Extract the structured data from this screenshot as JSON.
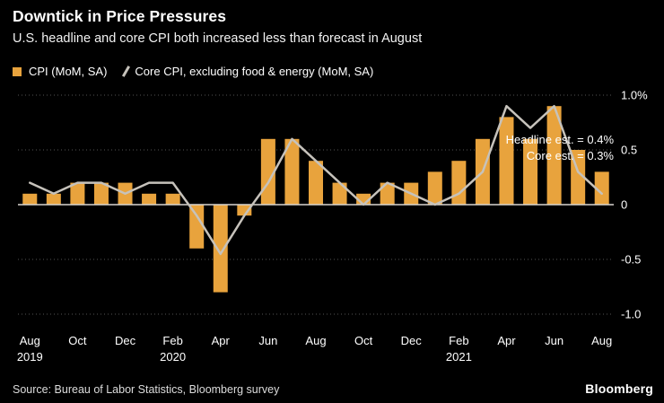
{
  "header": {
    "title": "Downtick in Price Pressures",
    "subtitle": "U.S. headline and core CPI both increased less than forecast in August"
  },
  "legend": {
    "bar_label": "CPI (MoM, SA)",
    "line_label": "Core CPI, excluding food & energy (MoM, SA)"
  },
  "footer": {
    "source": "Source: Bureau of Labor Statistics, Bloomberg survey",
    "logo": "Bloomberg"
  },
  "colors": {
    "background": "#000000",
    "bar": "#E8A33D",
    "line": "#C6C2BB",
    "grid": "#555555",
    "zero_line": "#D9D6D0",
    "text": "#ffffff"
  },
  "chart_data": {
    "type": "bar+line",
    "title": "Downtick in Price Pressures",
    "subtitle": "U.S. headline and core CPI both increased less than forecast in August",
    "categories": [
      "Aug 2019",
      "Sep 2019",
      "Oct 2019",
      "Nov 2019",
      "Dec 2019",
      "Jan 2020",
      "Feb 2020",
      "Mar 2020",
      "Apr 2020",
      "May 2020",
      "Jun 2020",
      "Jul 2020",
      "Aug 2020",
      "Sep 2020",
      "Oct 2020",
      "Nov 2020",
      "Dec 2020",
      "Jan 2021",
      "Feb 2021",
      "Mar 2021",
      "Apr 2021",
      "May 2021",
      "Jun 2021",
      "Jul 2021",
      "Aug 2021"
    ],
    "series": [
      {
        "name": "CPI (MoM, SA)",
        "type": "bar",
        "color": "#E8A33D",
        "values": [
          0.1,
          0.1,
          0.2,
          0.2,
          0.2,
          0.1,
          0.1,
          -0.4,
          -0.8,
          -0.1,
          0.6,
          0.6,
          0.4,
          0.2,
          0.1,
          0.2,
          0.2,
          0.3,
          0.4,
          0.6,
          0.8,
          0.6,
          0.9,
          0.5,
          0.3
        ]
      },
      {
        "name": "Core CPI, excluding food & energy (MoM, SA)",
        "type": "line",
        "color": "#C6C2BB",
        "values": [
          0.2,
          0.1,
          0.2,
          0.2,
          0.1,
          0.2,
          0.2,
          -0.1,
          -0.45,
          -0.1,
          0.2,
          0.6,
          0.4,
          0.2,
          0.0,
          0.2,
          0.1,
          0.0,
          0.1,
          0.3,
          0.9,
          0.7,
          0.9,
          0.3,
          0.1
        ]
      }
    ],
    "ylim": [
      -1.0,
      1.0
    ],
    "xlabel": "",
    "ylabel": "",
    "y_axis_side": "right",
    "grid": "horizontal-dotted",
    "legend_position": "top-left",
    "yticks": [
      {
        "value": 1.0,
        "label": "1.0%"
      },
      {
        "value": 0.5,
        "label": "0.5"
      },
      {
        "value": 0.0,
        "label": "0"
      },
      {
        "value": -0.5,
        "label": "-0.5"
      },
      {
        "value": -1.0,
        "label": "-1.0"
      }
    ],
    "xticks": [
      {
        "index": 0,
        "label": "Aug",
        "year": "2019"
      },
      {
        "index": 2,
        "label": "Oct"
      },
      {
        "index": 4,
        "label": "Dec"
      },
      {
        "index": 6,
        "label": "Feb",
        "year": "2020"
      },
      {
        "index": 8,
        "label": "Apr"
      },
      {
        "index": 10,
        "label": "Jun"
      },
      {
        "index": 12,
        "label": "Aug"
      },
      {
        "index": 14,
        "label": "Oct"
      },
      {
        "index": 16,
        "label": "Dec"
      },
      {
        "index": 18,
        "label": "Feb",
        "year": "2021"
      },
      {
        "index": 20,
        "label": "Apr"
      },
      {
        "index": 22,
        "label": "Jun"
      },
      {
        "index": 24,
        "label": "Aug"
      }
    ],
    "annotations": [
      {
        "text": "Headline est. = 0.4%"
      },
      {
        "text": "Core est. = 0.3%"
      }
    ]
  }
}
